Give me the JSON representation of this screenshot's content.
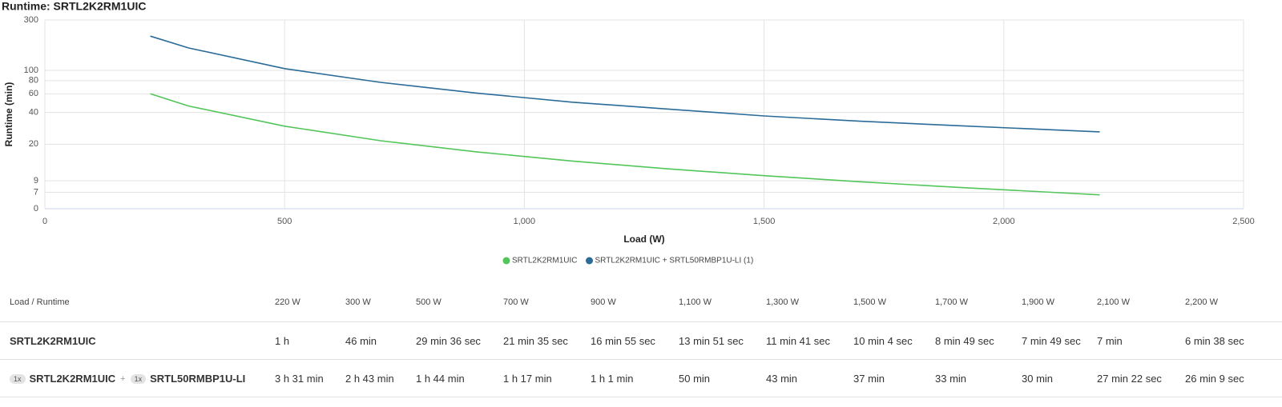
{
  "chart_data": {
    "type": "line",
    "title": "Runtime: SRTL2K2RM1UIC",
    "x_label": "Load (W)",
    "y_label": "Runtime (min)",
    "x": [
      220,
      300,
      500,
      700,
      900,
      1100,
      1300,
      1500,
      1700,
      1900,
      2100,
      2200
    ],
    "series": [
      {
        "name": "SRTL2K2RM1UIC",
        "color": "#52c65a",
        "values": [
          60,
          46,
          29.6,
          21.58,
          16.92,
          13.85,
          11.68,
          10.07,
          8.82,
          7.82,
          7,
          6.63
        ]
      },
      {
        "name": "SRTL2K2RM1UIC + SRTL50RMBP1U-LI (1)",
        "color": "#2a6b98",
        "values": [
          211,
          163,
          104,
          77,
          61,
          50,
          43,
          37,
          33,
          30,
          27.37,
          26.15
        ]
      }
    ],
    "xlim": [
      0,
      2500
    ],
    "xticks": [
      0,
      500,
      {
        "value": 1000,
        "label": "1,000"
      },
      {
        "value": 1500,
        "label": "1,500"
      },
      {
        "value": 2000,
        "label": "2,000"
      },
      {
        "value": 2500,
        "label": "2,500"
      }
    ],
    "ylim": [
      4.9,
      300
    ],
    "log_y": true,
    "yticks": [
      {
        "value": 0,
        "label": "0"
      },
      7,
      9,
      20,
      40,
      60,
      80,
      100,
      300
    ],
    "grid": true
  },
  "table": {
    "header": [
      "Load / Runtime",
      "220 W",
      "300 W",
      "500 W",
      "700 W",
      "900 W",
      "1,100 W",
      "1,300 W",
      "1,500 W",
      "1,700 W",
      "1,900 W",
      "2,100 W",
      "2,200 W"
    ],
    "rows": [
      {
        "label": "SRTL2K2RM1UIC",
        "cells": [
          "1 h",
          "46 min",
          "29 min 36 sec",
          "21 min 35 sec",
          "16 min 55 sec",
          "13 min 51 sec",
          "11 min 41 sec",
          "10 min 4 sec",
          "8 min 49 sec",
          "7 min 49 sec",
          "7 min",
          "6 min 38 sec"
        ]
      },
      {
        "parts": [
          {
            "qty": "1x",
            "name": "SRTL2K2RM1UIC"
          },
          {
            "qty": "1x",
            "name": "SRTL50RMBP1U-LI"
          }
        ],
        "joiner": "+",
        "cells": [
          "3 h 31 min",
          "2 h 43 min",
          "1 h 44 min",
          "1 h 17 min",
          "1 h 1 min",
          "50 min",
          "43 min",
          "37 min",
          "33 min",
          "30 min",
          "27 min 22 sec",
          "26 min 9 sec"
        ]
      }
    ]
  }
}
